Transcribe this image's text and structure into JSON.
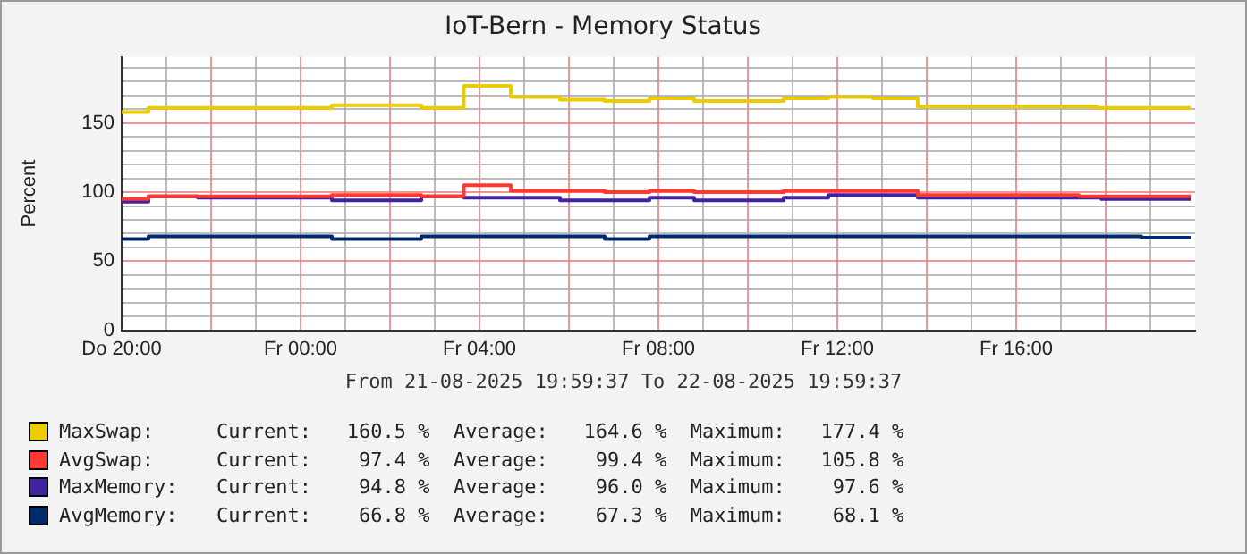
{
  "chart_data": {
    "type": "step",
    "title": "IoT-Bern - Memory Status",
    "ylabel": "Percent",
    "xlim": [
      "2025-08-21T20:00",
      "2025-08-22T20:00"
    ],
    "ylim": [
      0,
      198
    ],
    "xticks": [
      {
        "value": "2025-08-21T20:00",
        "label": "Do 20:00"
      },
      {
        "value": "2025-08-21T21:00",
        "label": null
      },
      {
        "value": "2025-08-21T22:00",
        "label": null
      },
      {
        "value": "2025-08-21T23:00",
        "label": null
      },
      {
        "value": "2025-08-22T00:00",
        "label": "Fr 00:00"
      },
      {
        "value": "2025-08-22T01:00",
        "label": null
      },
      {
        "value": "2025-08-22T02:00",
        "label": null
      },
      {
        "value": "2025-08-22T03:00",
        "label": null
      },
      {
        "value": "2025-08-22T04:00",
        "label": "Fr 04:00"
      },
      {
        "value": "2025-08-22T05:00",
        "label": null
      },
      {
        "value": "2025-08-22T06:00",
        "label": null
      },
      {
        "value": "2025-08-22T07:00",
        "label": null
      },
      {
        "value": "2025-08-22T08:00",
        "label": "Fr 08:00"
      },
      {
        "value": "2025-08-22T09:00",
        "label": null
      },
      {
        "value": "2025-08-22T10:00",
        "label": null
      },
      {
        "value": "2025-08-22T11:00",
        "label": null
      },
      {
        "value": "2025-08-22T12:00",
        "label": "Fr 12:00"
      },
      {
        "value": "2025-08-22T13:00",
        "label": null
      },
      {
        "value": "2025-08-22T14:00",
        "label": null
      },
      {
        "value": "2025-08-22T15:00",
        "label": null
      },
      {
        "value": "2025-08-22T16:00",
        "label": "Fr 16:00"
      },
      {
        "value": "2025-08-22T17:00",
        "label": null
      },
      {
        "value": "2025-08-22T18:00",
        "label": null
      },
      {
        "value": "2025-08-22T19:00",
        "label": null
      }
    ],
    "yticks": [
      0,
      {
        "value": 10,
        "label": null
      },
      {
        "value": 20,
        "label": null
      },
      {
        "value": 30,
        "label": null
      },
      {
        "value": 40,
        "label": null
      },
      50,
      {
        "value": 60,
        "label": null
      },
      {
        "value": 70,
        "label": null
      },
      {
        "value": 80,
        "label": null
      },
      {
        "value": 90,
        "label": null
      },
      100,
      {
        "value": 110,
        "label": null
      },
      {
        "value": 120,
        "label": null
      },
      {
        "value": 130,
        "label": null
      },
      {
        "value": 140,
        "label": null
      },
      150,
      {
        "value": 160,
        "label": null
      },
      {
        "value": 170,
        "label": null
      },
      {
        "value": 180,
        "label": null
      },
      {
        "value": 190,
        "label": null
      }
    ],
    "grid": true,
    "legend": "bottom",
    "line_style": "solid",
    "marker": "none",
    "series": [
      {
        "name": "MaxSwap:",
        "color": "#eacc00",
        "x": [
          "2025-08-21T20:00",
          "2025-08-21T20:36",
          "2025-08-22T00:42",
          "2025-08-22T02:42",
          "2025-08-22T03:39",
          "2025-08-22T04:42",
          "2025-08-22T05:48",
          "2025-08-22T06:48",
          "2025-08-22T07:48",
          "2025-08-22T08:48",
          "2025-08-22T10:48",
          "2025-08-22T11:48",
          "2025-08-22T12:48",
          "2025-08-22T13:48",
          "2025-08-22T17:48",
          "2025-08-22T19:54"
        ],
        "values": [
          158,
          161,
          163,
          161,
          177,
          169,
          167,
          166,
          168,
          166,
          168,
          169,
          168,
          162,
          161,
          161
        ]
      },
      {
        "name": "AvgSwap:",
        "color": "#ff3932",
        "x": [
          "2025-08-21T20:00",
          "2025-08-21T20:36",
          "2025-08-22T00:42",
          "2025-08-22T02:42",
          "2025-08-22T03:39",
          "2025-08-22T04:42",
          "2025-08-22T06:48",
          "2025-08-22T07:48",
          "2025-08-22T08:48",
          "2025-08-22T10:48",
          "2025-08-22T13:48",
          "2025-08-22T17:24",
          "2025-08-22T19:54"
        ],
        "values": [
          95,
          97,
          98,
          97,
          105,
          101,
          100,
          101,
          100,
          101,
          98,
          97,
          97
        ]
      },
      {
        "name": "MaxMemory:",
        "color": "#4123a1",
        "x": [
          "2025-08-21T20:00",
          "2025-08-21T20:36",
          "2025-08-21T21:42",
          "2025-08-22T00:42",
          "2025-08-22T02:42",
          "2025-08-22T03:39",
          "2025-08-22T05:48",
          "2025-08-22T07:48",
          "2025-08-22T08:48",
          "2025-08-22T10:48",
          "2025-08-22T11:48",
          "2025-08-22T13:48",
          "2025-08-22T17:54",
          "2025-08-22T19:54"
        ],
        "values": [
          93,
          97,
          96,
          94,
          97,
          96,
          94,
          96,
          94,
          96,
          98,
          96,
          95,
          95
        ]
      },
      {
        "name": "AvgMemory:",
        "color": "#002a6a",
        "x": [
          "2025-08-21T20:00",
          "2025-08-21T20:36",
          "2025-08-22T00:42",
          "2025-08-22T02:42",
          "2025-08-22T06:48",
          "2025-08-22T07:48",
          "2025-08-22T18:48",
          "2025-08-22T19:54"
        ],
        "values": [
          66,
          68,
          66,
          68,
          66,
          68,
          67,
          67
        ]
      }
    ],
    "annotations": [
      "From 21-08-2025 19:59:37 To 22-08-2025 19:59:37",
      "Current:   160.5 %  Average:   164.6 %  Maximum:   177.4 %",
      "Current:    97.4 %  Average:    99.4 %  Maximum:   105.8 %",
      "Current:    94.8 %  Average:    96.0 %  Maximum:    97.6 %",
      "Current:    66.8 %  Average:    67.3 %  Maximum:    68.1 %"
    ]
  }
}
